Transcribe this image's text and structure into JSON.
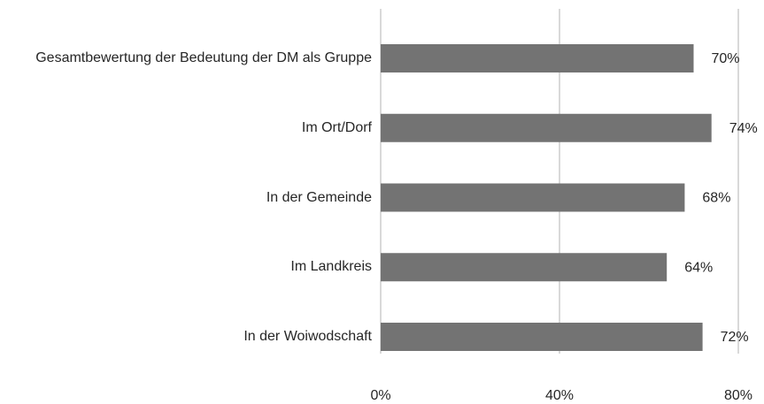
{
  "chart_data": {
    "type": "bar",
    "orientation": "horizontal",
    "categories": [
      "Gesamtbewertung der Bedeutung der DM als Gruppe",
      "Im Ort/Dorf",
      "In der Gemeinde",
      "Im Landkreis",
      "In der Woiwodschaft"
    ],
    "values": [
      70,
      74,
      68,
      64,
      72
    ],
    "value_labels": [
      "70%",
      "74%",
      "68%",
      "64%",
      "72%"
    ],
    "color": "#737373",
    "xlim": [
      0,
      80
    ],
    "xticks": [
      {
        "value": 0,
        "label": "0%"
      },
      {
        "value": 40,
        "label": "40%"
      },
      {
        "value": 80,
        "label": "80%"
      }
    ],
    "grid": true
  }
}
